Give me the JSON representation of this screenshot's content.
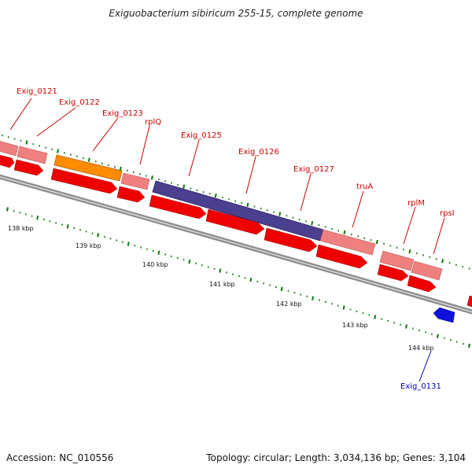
{
  "title": "Exiguobacterium sibiricum 255-15, complete genome",
  "footer": {
    "accession": "Accession: NC_010556",
    "summary": "Topology: circular; Length: 3,034,136 bp; Genes: 3,104"
  },
  "colors": {
    "backbone": "#8c8c8c",
    "cds_red": "#ee0000",
    "gene_pink": "#ee8080",
    "orange": "#ff8c00",
    "purple": "#4b3f8f",
    "blue": "#1010dd",
    "tick_green": "#0a7a0a",
    "label_red": "#cc0000",
    "label_blue": "#0000bb"
  },
  "gene_labels": [
    {
      "text": "Exig_0121",
      "color": "red"
    },
    {
      "text": "Exig_0122",
      "color": "red"
    },
    {
      "text": "Exig_0123",
      "color": "red"
    },
    {
      "text": "rplQ",
      "color": "red"
    },
    {
      "text": "Exig_0125",
      "color": "red"
    },
    {
      "text": "Exig_0126",
      "color": "red"
    },
    {
      "text": "Exig_0127",
      "color": "red"
    },
    {
      "text": "truA",
      "color": "red"
    },
    {
      "text": "rplM",
      "color": "red"
    },
    {
      "text": "rpsI",
      "color": "red"
    },
    {
      "text": "Exig_0131",
      "color": "blue"
    }
  ],
  "kbp_labels": [
    "138 kbp",
    "139 kbp",
    "140 kbp",
    "141 kbp",
    "142 kbp",
    "143 kbp",
    "144 kbp"
  ]
}
